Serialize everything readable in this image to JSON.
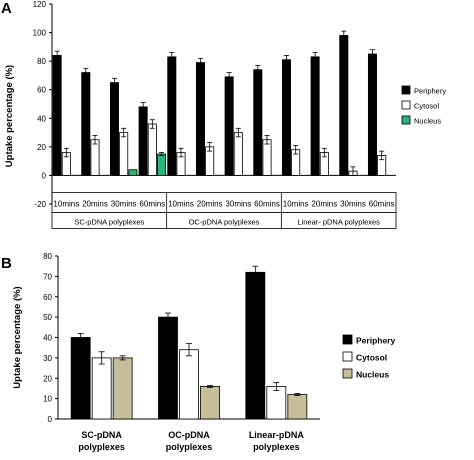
{
  "colors": {
    "periphery": "#000000",
    "cytosol_a": "#ffffff",
    "nucleus_a": "#2ab37a",
    "cytosol_b": "#ffffff",
    "nucleus_b": "#c7bf9a",
    "axis": "#000000"
  },
  "chart_data": [
    {
      "type": "bar",
      "panel": "A",
      "ylabel": "Uptake percentage (%)",
      "ylim": [
        -20,
        120
      ],
      "yticks": [
        "-20",
        "0",
        "20",
        "40",
        "60",
        "80",
        "100",
        "120"
      ],
      "categories": [
        "10mins",
        "20mins",
        "30mins",
        "60mins",
        "10mins",
        "20mins",
        "30mins",
        "60mins",
        "10mins",
        "20mins",
        "30mins",
        "60mins"
      ],
      "groups": [
        "SC-pDNA polyplexes",
        "OC-pDNA polyplexes",
        "Linear- pDNA polyplexes"
      ],
      "legend_position": "right",
      "series": [
        {
          "name": "Periphery",
          "values": [
            84,
            72,
            65,
            48,
            83,
            79,
            69,
            74,
            81,
            83,
            98,
            85
          ],
          "errors": [
            3,
            3,
            3,
            3,
            3,
            3,
            3,
            3,
            3,
            3,
            3,
            3
          ]
        },
        {
          "name": "Cytosol",
          "values": [
            16,
            25,
            30,
            36,
            16,
            20,
            30,
            25,
            18,
            16,
            3,
            14
          ],
          "errors": [
            3,
            3,
            3,
            3,
            3,
            3,
            3,
            3,
            3,
            3,
            3,
            3
          ]
        },
        {
          "name": "Nucleus",
          "values": [
            0,
            0,
            4,
            15,
            0,
            0,
            0,
            0,
            0,
            0,
            0,
            0
          ],
          "errors": [
            0,
            0,
            0,
            1,
            0,
            0,
            0,
            0,
            0,
            0,
            0,
            0
          ]
        }
      ]
    },
    {
      "type": "bar",
      "panel": "B",
      "ylabel": "Uptake percentage (%)",
      "ylim": [
        0,
        80
      ],
      "yticks": [
        "0",
        "10",
        "20",
        "30",
        "40",
        "50",
        "60",
        "70",
        "80"
      ],
      "categories": [
        "SC-pDNA polyplexes",
        "OC-pDNA polyplexes",
        "Linear-pDNA polyplexes"
      ],
      "category_lines": [
        [
          "SC-pDNA",
          "polyplexes"
        ],
        [
          "OC-pDNA",
          "polyplexes"
        ],
        [
          "Linear-pDNA",
          "polyplexes"
        ]
      ],
      "legend_position": "right",
      "series": [
        {
          "name": "Periphery",
          "values": [
            40,
            50,
            72
          ],
          "errors": [
            2,
            2,
            3
          ]
        },
        {
          "name": "Cytosol",
          "values": [
            30,
            34,
            16
          ],
          "errors": [
            3,
            3,
            2
          ]
        },
        {
          "name": "Nucleus",
          "values": [
            30,
            16,
            12
          ],
          "errors": [
            1,
            0.5,
            0.5
          ]
        }
      ]
    }
  ],
  "panels": {
    "a_label": "A",
    "b_label": "B"
  }
}
